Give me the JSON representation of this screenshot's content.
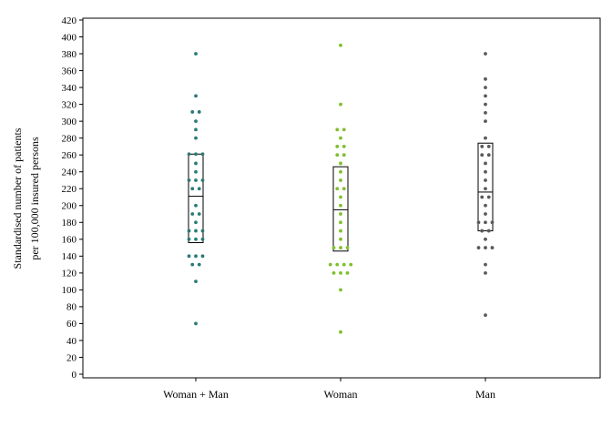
{
  "chart_data": {
    "type": "scatter",
    "xlabel": "",
    "ylabel": [
      "Standardised number of patients",
      "per 100,000 insured persons"
    ],
    "ylim": [
      0,
      420
    ],
    "yticks": [
      0,
      20,
      40,
      60,
      80,
      100,
      120,
      140,
      160,
      180,
      200,
      220,
      240,
      260,
      280,
      300,
      320,
      340,
      360,
      380,
      400,
      420
    ],
    "grid": false,
    "legend": "none",
    "categories": [
      "Woman + Man",
      "Woman",
      "Man"
    ],
    "series": [
      {
        "category": "Woman + Man",
        "color": "#2a7a78",
        "points": [
          380,
          330,
          311,
          311,
          300,
          290,
          280,
          261,
          261,
          261,
          250,
          240,
          230,
          230,
          230,
          220,
          220,
          200,
          190,
          190,
          180,
          170,
          170,
          170,
          160,
          160,
          160,
          140,
          140,
          140,
          130,
          130,
          110,
          60
        ],
        "box": {
          "q1": 156,
          "median": 211,
          "q3": 261
        }
      },
      {
        "category": "Woman",
        "color": "#7ec02c",
        "points": [
          390,
          320,
          290,
          290,
          280,
          270,
          270,
          260,
          260,
          250,
          240,
          230,
          220,
          220,
          210,
          200,
          190,
          180,
          170,
          160,
          150,
          150,
          150,
          130,
          130,
          130,
          130,
          120,
          120,
          120,
          100,
          50
        ],
        "box": {
          "q1": 146,
          "median": 195,
          "q3": 246
        }
      },
      {
        "category": "Man",
        "color": "#5a5a5a",
        "points": [
          380,
          350,
          340,
          330,
          320,
          310,
          300,
          280,
          270,
          270,
          260,
          260,
          250,
          240,
          230,
          220,
          210,
          210,
          200,
          190,
          180,
          180,
          180,
          170,
          170,
          160,
          150,
          150,
          150,
          130,
          120,
          70
        ],
        "box": {
          "q1": 170,
          "median": 216,
          "q3": 274
        }
      }
    ]
  }
}
